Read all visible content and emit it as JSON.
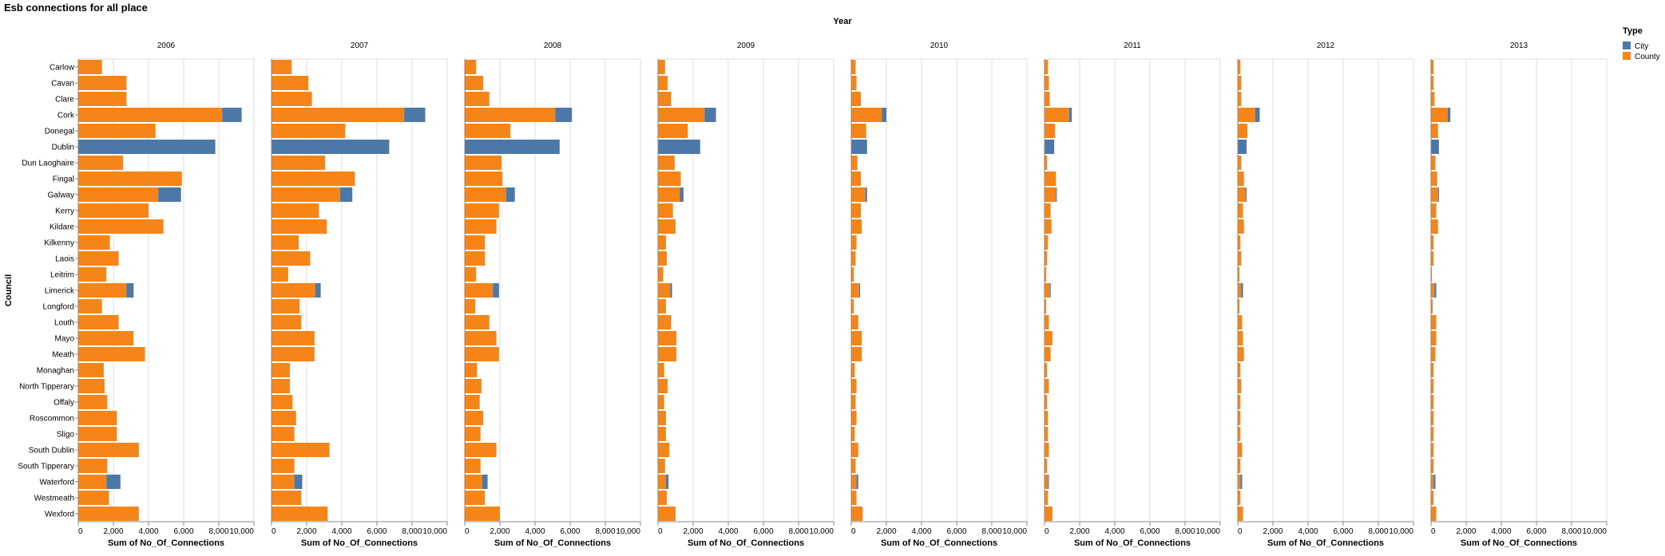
{
  "chart_data": {
    "type": "bar",
    "orientation": "horizontal",
    "stacked": true,
    "title": "Esb connections for all place",
    "column_facet_title": "Year",
    "ylabel": "Council",
    "xlabel": "Sum of No_Of_Connections",
    "xlim": [
      0,
      10000
    ],
    "xticks": [
      0,
      2000,
      4000,
      6000,
      8000,
      10000
    ],
    "xtick_labels": [
      "0",
      "2,000",
      "4,000",
      "6,000",
      "8,000",
      "10,000"
    ],
    "grid": true,
    "legend": {
      "title": "Type",
      "position": "right",
      "entries": [
        {
          "name": "City",
          "color": "#4c78a8"
        },
        {
          "name": "County",
          "color": "#f58518"
        }
      ]
    },
    "categories": [
      "Carlow",
      "Cavan",
      "Clare",
      "Cork",
      "Donegal",
      "Dublin",
      "Dun Laoghaire",
      "Fingal",
      "Galway",
      "Kerry",
      "Kildare",
      "Kilkenny",
      "Laois",
      "Leitrim",
      "Limerick",
      "Longford",
      "Louth",
      "Mayo",
      "Meath",
      "Monaghan",
      "North Tipperary",
      "Offaly",
      "Roscommon",
      "Sligo",
      "South Dublin",
      "South Tipperary",
      "Waterford",
      "Westmeath",
      "Wexford"
    ],
    "facets": [
      {
        "year": "2006",
        "series": [
          {
            "name": "County",
            "values": [
              1350,
              2750,
              2750,
              8200,
              4400,
              0,
              2550,
              5900,
              4550,
              4000,
              4850,
              1800,
              2300,
              1600,
              2750,
              1350,
              2300,
              3150,
              3800,
              1450,
              1500,
              1650,
              2200,
              2200,
              3450,
              1650,
              1600,
              1750,
              3450
            ]
          },
          {
            "name": "City",
            "values": [
              0,
              0,
              0,
              1100,
              0,
              7800,
              0,
              0,
              1300,
              0,
              0,
              0,
              0,
              0,
              400,
              0,
              0,
              0,
              0,
              0,
              0,
              0,
              0,
              0,
              0,
              0,
              800,
              0,
              0
            ]
          }
        ]
      },
      {
        "year": "2007",
        "series": [
          {
            "name": "County",
            "values": [
              1150,
              2100,
              2300,
              7550,
              4200,
              0,
              3050,
              4750,
              3900,
              2700,
              3150,
              1550,
              2200,
              950,
              2500,
              1600,
              1700,
              2450,
              2450,
              1050,
              1050,
              1200,
              1400,
              1300,
              3300,
              1300,
              1300,
              1700,
              3200
            ]
          },
          {
            "name": "City",
            "values": [
              0,
              0,
              0,
              1200,
              0,
              6700,
              0,
              0,
              700,
              0,
              0,
              0,
              0,
              0,
              300,
              0,
              0,
              0,
              0,
              0,
              0,
              0,
              0,
              0,
              0,
              0,
              450,
              0,
              0
            ]
          }
        ]
      },
      {
        "year": "2008",
        "series": [
          {
            "name": "County",
            "values": [
              650,
              1050,
              1400,
              5150,
              2600,
              0,
              2100,
              2150,
              2350,
              1950,
              1800,
              1150,
              1150,
              650,
              1600,
              600,
              1400,
              1800,
              1950,
              700,
              950,
              850,
              1050,
              900,
              1800,
              900,
              1000,
              1150,
              2000
            ]
          },
          {
            "name": "City",
            "values": [
              0,
              0,
              0,
              950,
              0,
              5400,
              0,
              0,
              500,
              0,
              0,
              0,
              0,
              0,
              350,
              0,
              0,
              0,
              0,
              0,
              0,
              0,
              0,
              0,
              0,
              0,
              300,
              0,
              0
            ]
          }
        ]
      },
      {
        "year": "2009",
        "series": [
          {
            "name": "County",
            "values": [
              400,
              550,
              750,
              2650,
              1700,
              0,
              950,
              1300,
              1250,
              850,
              1000,
              450,
              500,
              300,
              700,
              450,
              750,
              1050,
              1050,
              350,
              550,
              350,
              450,
              450,
              650,
              400,
              450,
              500,
              1000
            ]
          },
          {
            "name": "City",
            "values": [
              0,
              0,
              0,
              650,
              0,
              2400,
              0,
              0,
              200,
              0,
              0,
              0,
              0,
              0,
              100,
              0,
              0,
              0,
              0,
              0,
              0,
              0,
              0,
              0,
              0,
              0,
              150,
              0,
              0
            ]
          }
        ]
      },
      {
        "year": "2010",
        "series": [
          {
            "name": "County",
            "values": [
              250,
              300,
              550,
              1750,
              850,
              0,
              350,
              550,
              800,
              550,
              600,
              300,
              250,
              150,
              450,
              150,
              400,
              600,
              600,
              200,
              300,
              250,
              300,
              200,
              400,
              250,
              300,
              300,
              650
            ]
          },
          {
            "name": "City",
            "values": [
              0,
              0,
              0,
              250,
              0,
              900,
              0,
              0,
              100,
              0,
              0,
              0,
              0,
              0,
              50,
              0,
              0,
              0,
              0,
              0,
              0,
              0,
              0,
              0,
              0,
              0,
              100,
              0,
              0
            ]
          }
        ]
      },
      {
        "year": "2011",
        "series": [
          {
            "name": "County",
            "values": [
              200,
              250,
              300,
              1400,
              600,
              0,
              150,
              650,
              650,
              350,
              400,
              200,
              150,
              100,
              300,
              100,
              250,
              450,
              350,
              150,
              250,
              150,
              200,
              200,
              250,
              150,
              200,
              200,
              450
            ]
          },
          {
            "name": "City",
            "values": [
              0,
              0,
              0,
              150,
              0,
              550,
              0,
              0,
              50,
              0,
              0,
              0,
              0,
              0,
              50,
              0,
              0,
              0,
              0,
              0,
              0,
              0,
              0,
              0,
              0,
              0,
              50,
              0,
              0
            ]
          }
        ]
      },
      {
        "year": "2012",
        "series": [
          {
            "name": "County",
            "values": [
              150,
              200,
              200,
              1000,
              550,
              0,
              200,
              350,
              450,
              300,
              350,
              150,
              200,
              100,
              200,
              100,
              250,
              300,
              350,
              150,
              200,
              150,
              150,
              150,
              250,
              150,
              150,
              150,
              300
            ]
          },
          {
            "name": "City",
            "values": [
              0,
              0,
              0,
              250,
              0,
              500,
              0,
              0,
              50,
              0,
              0,
              0,
              0,
              0,
              100,
              0,
              0,
              0,
              0,
              0,
              0,
              0,
              0,
              0,
              0,
              0,
              100,
              0,
              0
            ]
          }
        ]
      },
      {
        "year": "2013",
        "series": [
          {
            "name": "County",
            "values": [
              150,
              150,
              200,
              950,
              400,
              0,
              250,
              350,
              400,
              300,
              400,
              150,
              150,
              50,
              200,
              100,
              300,
              300,
              250,
              150,
              150,
              150,
              150,
              150,
              150,
              150,
              150,
              150,
              300
            ]
          },
          {
            "name": "City",
            "values": [
              0,
              0,
              0,
              150,
              0,
              450,
              0,
              0,
              50,
              0,
              0,
              0,
              0,
              0,
              100,
              0,
              0,
              0,
              0,
              0,
              0,
              0,
              0,
              0,
              0,
              0,
              100,
              0,
              0
            ]
          }
        ]
      }
    ]
  }
}
